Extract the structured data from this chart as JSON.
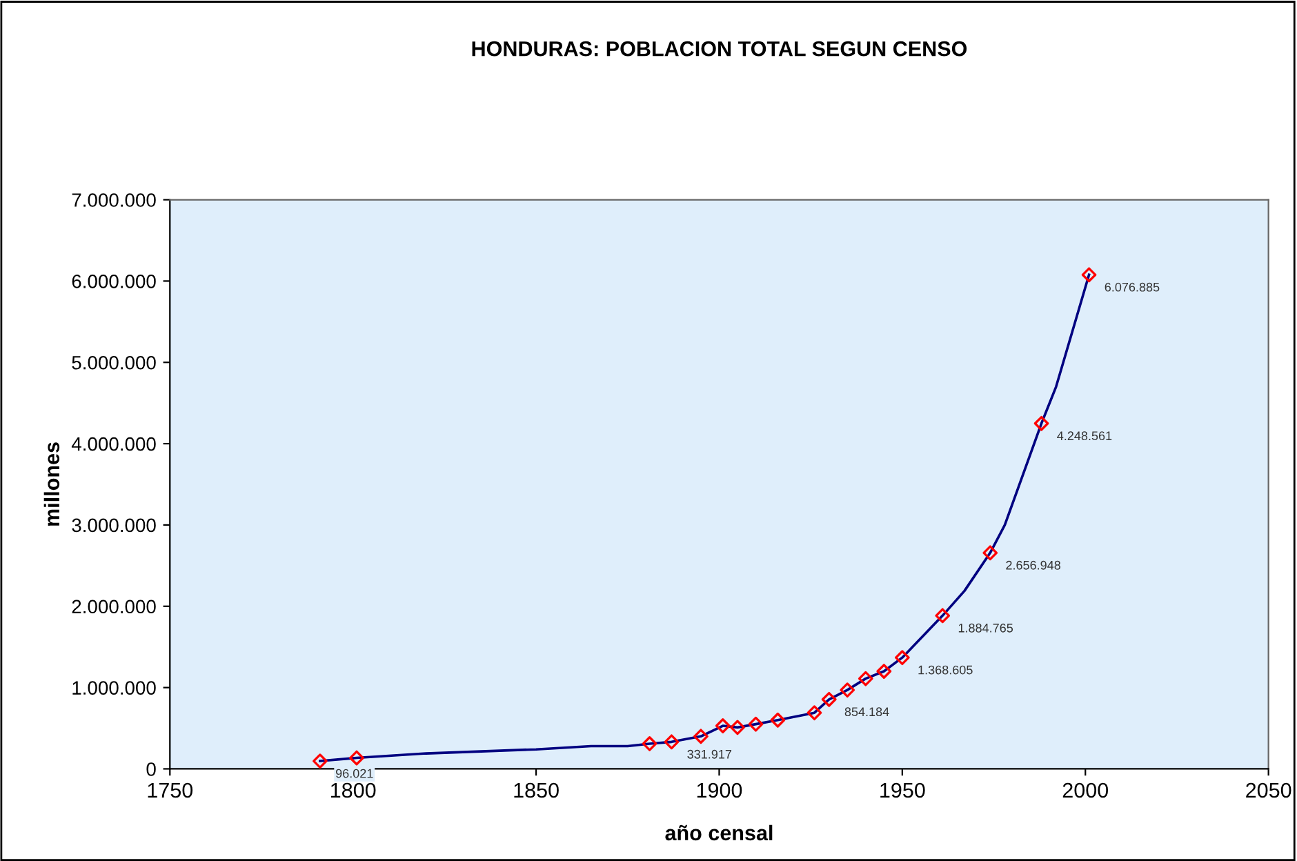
{
  "chart_data": {
    "type": "line",
    "title": "HONDURAS: POBLACION TOTAL SEGUN CENSO",
    "xlabel": "año censal",
    "ylabel": "millones",
    "xlim": [
      1750,
      2050
    ],
    "xticks": [
      1750,
      1800,
      1850,
      1900,
      1950,
      2000,
      2050
    ],
    "ylim": [
      0,
      7000000
    ],
    "yticks": [
      {
        "value": 0,
        "label": "0"
      },
      {
        "value": 1000000,
        "label": "1.000.000"
      },
      {
        "value": 2000000,
        "label": "2.000.000"
      },
      {
        "value": 3000000,
        "label": "3.000.000"
      },
      {
        "value": 4000000,
        "label": "4.000.000"
      },
      {
        "value": 5000000,
        "label": "5.000.000"
      },
      {
        "value": 6000000,
        "label": "6.000.000"
      },
      {
        "value": 7000000,
        "label": "7.000.000"
      }
    ],
    "grid": false,
    "series": [
      {
        "color": "#000080",
        "marker": "none",
        "line_style": "solid",
        "x": [
          1791,
          1801,
          1820,
          1850,
          1865,
          1875,
          1881,
          1887,
          1895,
          1901,
          1905,
          1910,
          1916,
          1926,
          1930,
          1935,
          1940,
          1945,
          1950,
          1961,
          1967,
          1974,
          1978,
          1988,
          1992,
          2001
        ],
        "values": [
          96021,
          135000,
          190000,
          240000,
          280000,
          280000,
          310000,
          331917,
          400000,
          530000,
          510000,
          550000,
          600000,
          690000,
          854184,
          970000,
          1110000,
          1200000,
          1368605,
          1884765,
          2190000,
          2656948,
          3000000,
          4248561,
          4700000,
          6076885
        ]
      },
      {
        "type": "scatter",
        "color": "#ff0000",
        "marker": "diamond",
        "x": [
          1791,
          1801,
          1881,
          1887,
          1895,
          1901,
          1905,
          1910,
          1916,
          1926,
          1930,
          1935,
          1940,
          1945,
          1950,
          1961,
          1974,
          1988,
          2001
        ],
        "values": [
          96021,
          135000,
          310000,
          331917,
          400000,
          530000,
          510000,
          550000,
          600000,
          690000,
          854184,
          970000,
          1110000,
          1200000,
          1368605,
          1884765,
          2656948,
          4248561,
          6076885
        ],
        "value_labels": [
          "96.021",
          null,
          null,
          "331.917",
          null,
          null,
          null,
          null,
          null,
          null,
          "854.184",
          null,
          null,
          null,
          "1.368.605",
          "1.884.765",
          "2.656.948",
          "4.248.561",
          "6.076.885"
        ]
      }
    ]
  }
}
